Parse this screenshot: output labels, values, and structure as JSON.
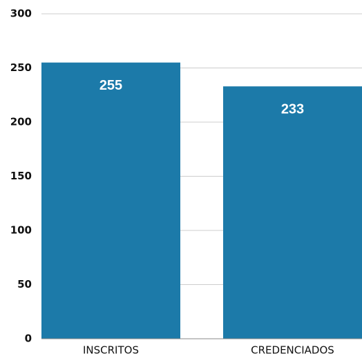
{
  "chart_data": {
    "type": "bar",
    "categories": [
      "INSCRITOS",
      "CREDENCIADOS"
    ],
    "values": [
      255,
      233
    ],
    "color": "#1c7aa9",
    "ylim": [
      0,
      300
    ],
    "yticks": [
      0,
      50,
      100,
      150,
      200,
      250,
      300
    ],
    "grid": true
  }
}
